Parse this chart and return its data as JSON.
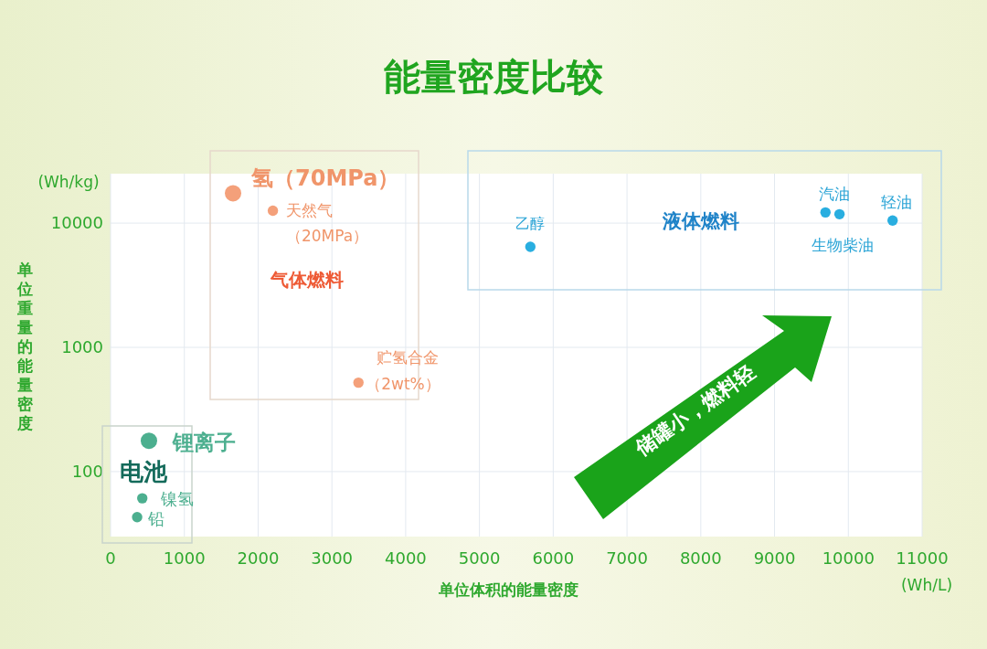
{
  "chart_data": {
    "type": "scatter",
    "title": "能量密度比较",
    "xlabel": "单位体积的能量密度",
    "ylabel": "单位重量的能量密度",
    "log": "y",
    "xlim": [
      0,
      11000
    ],
    "ylim": [
      30,
      25000
    ],
    "xticks": [
      0,
      1000,
      2000,
      3000,
      4000,
      5000,
      6000,
      7000,
      8000,
      9000,
      10000,
      11000
    ],
    "yticks": [
      100,
      1000,
      10000
    ],
    "grid": true,
    "marker": "circle",
    "series": [
      {
        "color": "#f4a07a",
        "x": [
          1660,
          2200,
          3360
        ],
        "values": [
          17400,
          12600,
          520
        ],
        "sizes": [
          1,
          0.4,
          0.4
        ]
      },
      {
        "color": "#29aee0",
        "x": [
          5690,
          9690,
          9880,
          10600
        ],
        "values": [
          6450,
          12200,
          11800,
          10500
        ],
        "sizes": [
          0.4,
          0.4,
          0.4,
          0.4
        ]
      },
      {
        "color": "#4caf8f",
        "x": [
          520,
          430,
          360
        ],
        "values": [
          177,
          61,
          43
        ],
        "sizes": [
          1,
          0.4,
          0.4
        ]
      }
    ],
    "annotations": [
      {
        "text": "氢（70MPa）",
        "x": 1660,
        "y": 17400
      },
      {
        "text": "天然气",
        "x": 2200,
        "y": 12600
      },
      {
        "text": "（2wt%）",
        "x": 3360,
        "y": 520
      },
      {
        "text": "乙醇",
        "x": 5690,
        "y": 6450
      },
      {
        "text": "汽油",
        "x": 9690,
        "y": 12200
      },
      {
        "text": "生物柴油",
        "x": 9880,
        "y": 11800
      },
      {
        "text": "轻油",
        "x": 10600,
        "y": 10500
      },
      {
        "text": "锂离子",
        "x": 520,
        "y": 177
      },
      {
        "text": "镍氢",
        "x": 430,
        "y": 61
      },
      {
        "text": "铅",
        "x": 360,
        "y": 43
      },
      "（20MPa）",
      "贮氢合金",
      "气体燃料",
      "液体燃料",
      "电池",
      "储罐小，燃料轻",
      "(Wh/kg)",
      "(Wh/L)"
    ]
  }
}
